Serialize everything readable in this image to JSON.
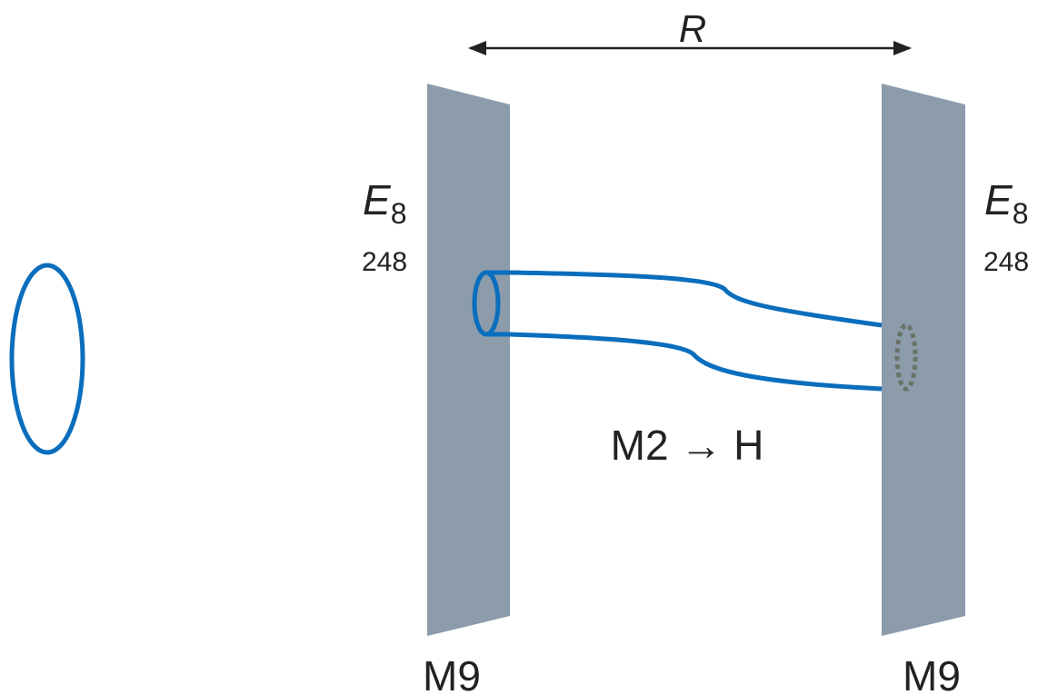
{
  "distance_label": "R",
  "branes": [
    {
      "group": "E",
      "group_index": "8",
      "dimension": "248",
      "label": "M9"
    },
    {
      "group": "E",
      "group_index": "8",
      "dimension": "248",
      "label": "M9"
    }
  ],
  "membrane_label": "M2 → H"
}
